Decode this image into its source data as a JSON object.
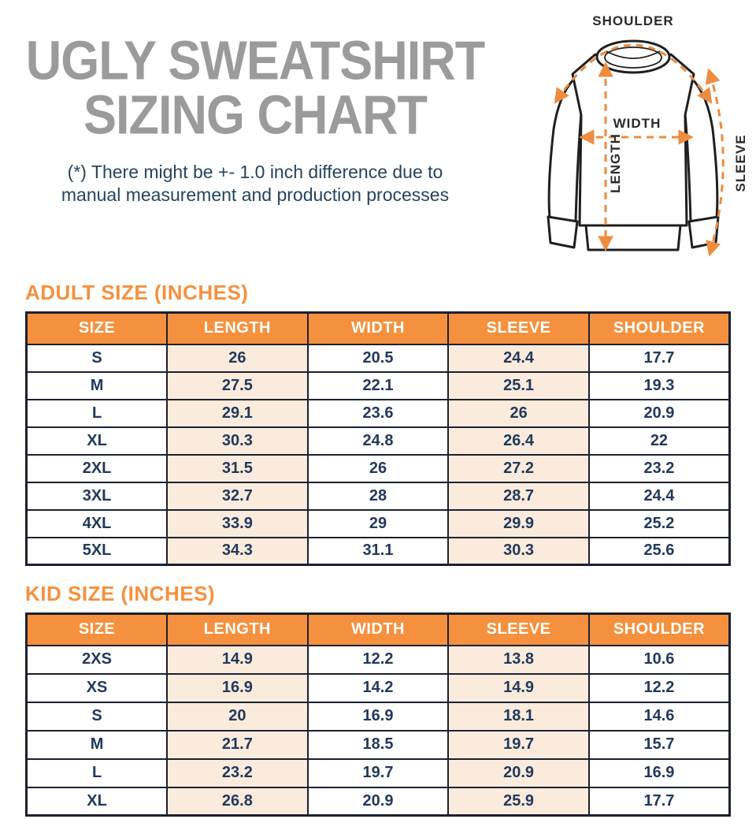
{
  "title": {
    "line1": "UGLY SWEATSHIRT",
    "line2": "SIZING CHART"
  },
  "disclaimer": {
    "line1": "(*) There might be +- 1.0 inch difference due to",
    "line2": "manual measurement and production processes"
  },
  "diagram": {
    "shoulder_label": "SHOULDER",
    "width_label": "WIDTH",
    "length_label": "LENGTH",
    "sleeve_label": "SLEEVE"
  },
  "colors": {
    "accent_orange": "#f5913e",
    "arrow_orange": "#ee8c3f",
    "peach_cell": "#faebdd",
    "navy_text": "#22395c",
    "title_gray": "#9b9b9b",
    "table_border": "#1c2030"
  },
  "adult_table": {
    "title": "ADULT SIZE (INCHES)",
    "headers": [
      "SIZE",
      "LENGTH",
      "WIDTH",
      "SLEEVE",
      "SHOULDER"
    ],
    "rows": [
      [
        "S",
        "26",
        "20.5",
        "24.4",
        "17.7"
      ],
      [
        "M",
        "27.5",
        "22.1",
        "25.1",
        "19.3"
      ],
      [
        "L",
        "29.1",
        "23.6",
        "26",
        "20.9"
      ],
      [
        "XL",
        "30.3",
        "24.8",
        "26.4",
        "22"
      ],
      [
        "2XL",
        "31.5",
        "26",
        "27.2",
        "23.2"
      ],
      [
        "3XL",
        "32.7",
        "28",
        "28.7",
        "24.4"
      ],
      [
        "4XL",
        "33.9",
        "29",
        "29.9",
        "25.2"
      ],
      [
        "5XL",
        "34.3",
        "31.1",
        "30.3",
        "25.6"
      ]
    ]
  },
  "kid_table": {
    "title": "KID SIZE (INCHES)",
    "headers": [
      "SIZE",
      "LENGTH",
      "WIDTH",
      "SLEEVE",
      "SHOULDER"
    ],
    "rows": [
      [
        "2XS",
        "14.9",
        "12.2",
        "13.8",
        "10.6"
      ],
      [
        "XS",
        "16.9",
        "14.2",
        "14.9",
        "12.2"
      ],
      [
        "S",
        "20",
        "16.9",
        "18.1",
        "14.6"
      ],
      [
        "M",
        "21.7",
        "18.5",
        "19.7",
        "15.7"
      ],
      [
        "L",
        "23.2",
        "19.7",
        "20.9",
        "16.9"
      ],
      [
        "XL",
        "26.8",
        "20.9",
        "25.9",
        "17.7"
      ]
    ]
  }
}
